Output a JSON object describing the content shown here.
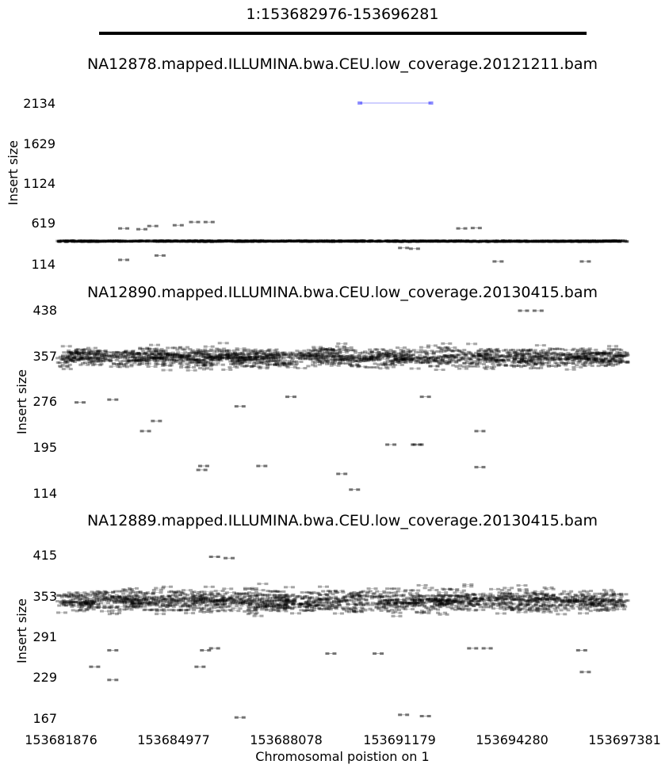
{
  "chart_data": {
    "type": "scatter",
    "title": "1:153682976-153696281",
    "xlabel": "Chromosomal poistion on 1",
    "x_ticks": [
      "153681876",
      "153684977",
      "153688078",
      "153691179",
      "153694280",
      "153697381"
    ],
    "xlim": [
      153681876,
      153697381
    ],
    "region": [
      153682976,
      153696281
    ],
    "panels": [
      {
        "title": "NA12878.mapped.ILLUMINA.bwa.CEU.low_coverage.20121211.bam",
        "ylabel": "Insert size",
        "y_ticks": [
          "2134",
          "1629",
          "1124",
          "619",
          "114"
        ],
        "ylim": [
          114,
          2134
        ],
        "colors": {
          "normal": "#000000",
          "discordant": "#0000ff"
        },
        "band": {
          "center": 400,
          "spread": 40
        },
        "discordant_pairs": [
          {
            "start": 153690100,
            "end": 153692050,
            "insert": 2134
          }
        ],
        "outliers": [
          {
            "x": 153685100,
            "y": 600
          },
          {
            "x": 153685550,
            "y": 640
          },
          {
            "x": 153685950,
            "y": 640
          },
          {
            "x": 153683600,
            "y": 560
          },
          {
            "x": 153684100,
            "y": 550
          },
          {
            "x": 153684400,
            "y": 590
          },
          {
            "x": 153683600,
            "y": 165
          },
          {
            "x": 153684600,
            "y": 220
          },
          {
            "x": 153691300,
            "y": 315
          },
          {
            "x": 153691600,
            "y": 305
          },
          {
            "x": 153692900,
            "y": 560
          },
          {
            "x": 153693300,
            "y": 565
          },
          {
            "x": 153693900,
            "y": 145
          },
          {
            "x": 153696300,
            "y": 145
          }
        ]
      },
      {
        "title": "NA12890.mapped.ILLUMINA.bwa.CEU.low_coverage.20130415.bam",
        "ylabel": "Insert size",
        "y_ticks": [
          "438",
          "357",
          "276",
          "195",
          "114"
        ],
        "ylim": [
          114,
          438
        ],
        "colors": {
          "normal": "#000000"
        },
        "band": {
          "center": 355,
          "spread": 30
        },
        "outliers": [
          {
            "x": 153694600,
            "y": 438
          },
          {
            "x": 153695000,
            "y": 438
          },
          {
            "x": 153682400,
            "y": 275
          },
          {
            "x": 153683300,
            "y": 280
          },
          {
            "x": 153684500,
            "y": 242
          },
          {
            "x": 153684200,
            "y": 224
          },
          {
            "x": 153686800,
            "y": 268
          },
          {
            "x": 153688200,
            "y": 285
          },
          {
            "x": 153691900,
            "y": 285
          },
          {
            "x": 153693400,
            "y": 224
          },
          {
            "x": 153690950,
            "y": 200
          },
          {
            "x": 153691650,
            "y": 200
          },
          {
            "x": 153691700,
            "y": 200
          },
          {
            "x": 153685800,
            "y": 162
          },
          {
            "x": 153685750,
            "y": 155
          },
          {
            "x": 153687400,
            "y": 162
          },
          {
            "x": 153693400,
            "y": 160
          },
          {
            "x": 153689600,
            "y": 148
          },
          {
            "x": 153689950,
            "y": 120
          }
        ]
      },
      {
        "title": "NA12889.mapped.ILLUMINA.bwa.CEU.low_coverage.20130415.bam",
        "ylabel": "Insert size",
        "y_ticks": [
          "415",
          "353",
          "291",
          "229",
          "167"
        ],
        "ylim": [
          167,
          415
        ],
        "colors": {
          "normal": "#000000"
        },
        "band": {
          "center": 345,
          "spread": 30
        },
        "outliers": [
          {
            "x": 153686100,
            "y": 412
          },
          {
            "x": 153686500,
            "y": 410
          },
          {
            "x": 153683300,
            "y": 270
          },
          {
            "x": 153682800,
            "y": 245
          },
          {
            "x": 153683300,
            "y": 225
          },
          {
            "x": 153685700,
            "y": 245
          },
          {
            "x": 153685850,
            "y": 270
          },
          {
            "x": 153686100,
            "y": 273
          },
          {
            "x": 153689300,
            "y": 265
          },
          {
            "x": 153690600,
            "y": 265
          },
          {
            "x": 153693200,
            "y": 273
          },
          {
            "x": 153693600,
            "y": 273
          },
          {
            "x": 153696200,
            "y": 270
          },
          {
            "x": 153696300,
            "y": 237
          },
          {
            "x": 153686800,
            "y": 168
          },
          {
            "x": 153691300,
            "y": 172
          },
          {
            "x": 153691900,
            "y": 170
          }
        ]
      }
    ]
  }
}
